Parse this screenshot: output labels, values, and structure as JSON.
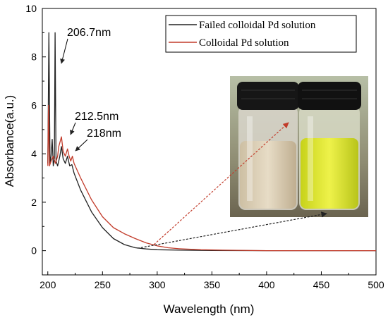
{
  "chart_data": {
    "type": "line",
    "xlabel": "Wavelength (nm)",
    "ylabel": "Absorbance(a.u.)",
    "xlim": [
      195,
      500
    ],
    "ylim": [
      -1,
      10
    ],
    "xticks": [
      200,
      250,
      300,
      350,
      400,
      450,
      500
    ],
    "yticks": [
      0,
      2,
      4,
      6,
      8,
      10
    ],
    "legend_position": "top-right",
    "series": [
      {
        "name": "Failed colloidal Pd solution",
        "color": "#222222",
        "points": [
          [
            200,
            3.6
          ],
          [
            201,
            9.0
          ],
          [
            202,
            3.6
          ],
          [
            203,
            3.9
          ],
          [
            204,
            4.6
          ],
          [
            205,
            3.5
          ],
          [
            206,
            3.8
          ],
          [
            206.7,
            9.0
          ],
          [
            207.5,
            3.7
          ],
          [
            209,
            3.5
          ],
          [
            211,
            3.9
          ],
          [
            212.5,
            4.3
          ],
          [
            214,
            3.8
          ],
          [
            216,
            3.6
          ],
          [
            218,
            3.9
          ],
          [
            220,
            3.5
          ],
          [
            222,
            3.55
          ],
          [
            224,
            3.2
          ],
          [
            230,
            2.5
          ],
          [
            240,
            1.6
          ],
          [
            250,
            0.95
          ],
          [
            260,
            0.5
          ],
          [
            270,
            0.25
          ],
          [
            280,
            0.12
          ],
          [
            290,
            0.07
          ],
          [
            300,
            0.04
          ],
          [
            320,
            0.02
          ],
          [
            350,
            0.01
          ],
          [
            400,
            0.0
          ],
          [
            500,
            0.0
          ]
        ]
      },
      {
        "name": "Colloidal Pd solution",
        "color": "#c23b2a",
        "points": [
          [
            200,
            3.5
          ],
          [
            200.6,
            6.0
          ],
          [
            201.5,
            3.5
          ],
          [
            203,
            3.7
          ],
          [
            205,
            3.9
          ],
          [
            207,
            3.6
          ],
          [
            209,
            3.9
          ],
          [
            210,
            4.3
          ],
          [
            212.5,
            4.7
          ],
          [
            214,
            4.1
          ],
          [
            216,
            3.9
          ],
          [
            218,
            4.2
          ],
          [
            219.5,
            3.9
          ],
          [
            221,
            3.7
          ],
          [
            222.5,
            3.9
          ],
          [
            224,
            3.6
          ],
          [
            230,
            3.0
          ],
          [
            240,
            2.1
          ],
          [
            250,
            1.4
          ],
          [
            260,
            0.95
          ],
          [
            270,
            0.7
          ],
          [
            280,
            0.5
          ],
          [
            290,
            0.32
          ],
          [
            300,
            0.2
          ],
          [
            310,
            0.12
          ],
          [
            320,
            0.08
          ],
          [
            340,
            0.04
          ],
          [
            360,
            0.02
          ],
          [
            400,
            0.0
          ],
          [
            500,
            0.0
          ]
        ]
      }
    ],
    "annotations": [
      {
        "text": "206.7nm",
        "x": 206.7,
        "y": 9.0
      },
      {
        "text": "212.5nm",
        "x": 212.5,
        "y": 4.7
      },
      {
        "text": "218nm",
        "x": 218,
        "y": 4.2
      }
    ],
    "inset": {
      "type": "photo",
      "description": "two vials",
      "arrows": [
        {
          "color": "#c23b2a",
          "from": [
            297,
            0.25
          ]
        },
        {
          "color": "#222222",
          "from": [
            282,
            0.1
          ]
        }
      ]
    }
  }
}
